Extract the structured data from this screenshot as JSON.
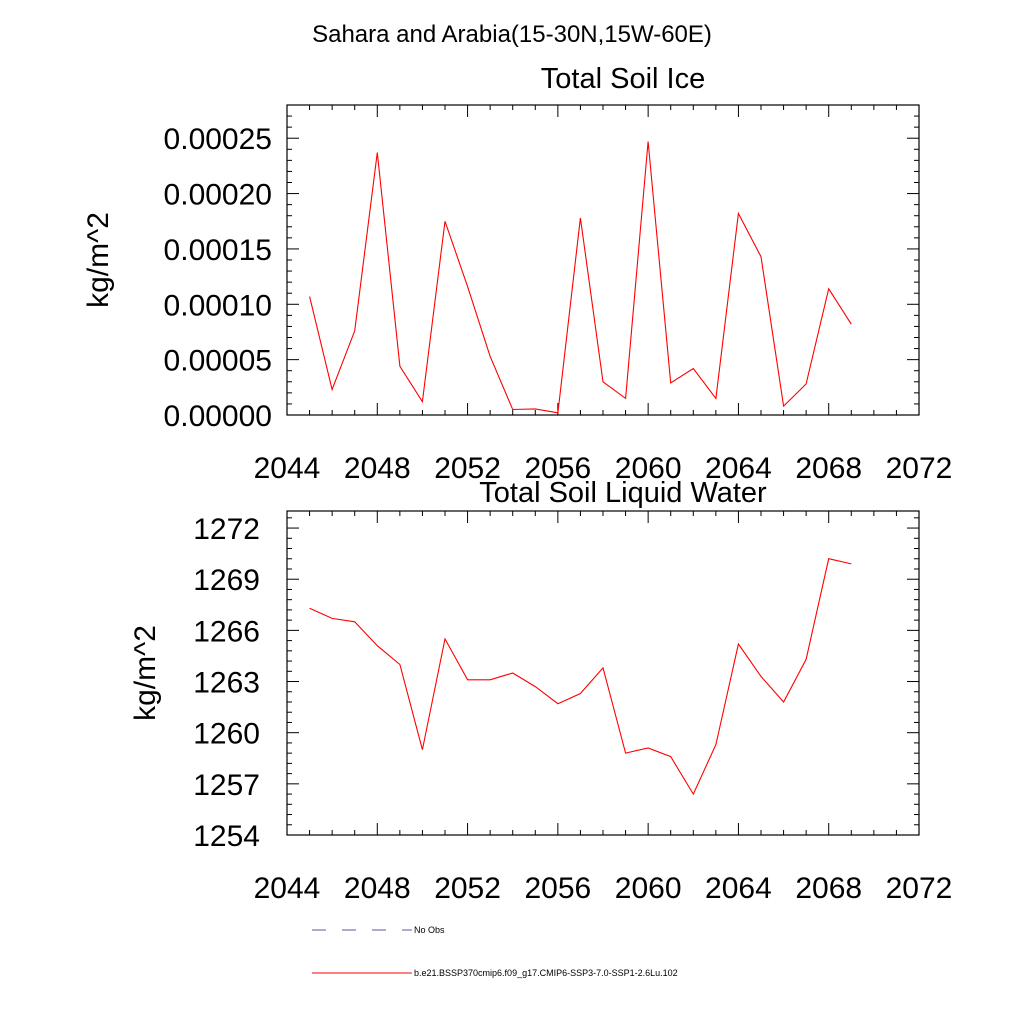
{
  "suptitle": "Sahara and Arabia(15-30N,15W-60E)",
  "legend": [
    {
      "label": "No Obs",
      "color": "#5a5aa0",
      "style": "dashed"
    },
    {
      "label": "b.e21.BSSP370cmip6.f09_g17.CMIP6-SSP3-7.0-SSP1-2.6Lu.102",
      "color": "#ff0000",
      "style": "solid"
    }
  ],
  "chart_data": [
    {
      "type": "line",
      "title": "Total Soil Ice",
      "xlabel": "",
      "ylabel": "kg/m^2",
      "xlim": [
        2044,
        2072
      ],
      "ylim": [
        0,
        0.00028
      ],
      "xticks": [
        2044,
        2048,
        2052,
        2056,
        2060,
        2064,
        2068,
        2072
      ],
      "xtick_labels": [
        "2044",
        "2048",
        "2052",
        "2056",
        "2060",
        "2064",
        "2068",
        "2072"
      ],
      "yticks": [
        0,
        5e-05,
        0.0001,
        0.00015,
        0.0002,
        0.00025
      ],
      "ytick_labels": [
        "0.00000",
        "0.00005",
        "0.00010",
        "0.00015",
        "0.00020",
        "0.00025"
      ],
      "grid": false,
      "series": [
        {
          "color": "#ff0000",
          "x": [
            2045,
            2046,
            2047,
            2048,
            2049,
            2050,
            2051,
            2052,
            2053,
            2054,
            2055,
            2056,
            2057,
            2058,
            2059,
            2060,
            2061,
            2062,
            2063,
            2064,
            2065,
            2066,
            2067,
            2068,
            2069
          ],
          "y": [
            0.000107,
            2.3e-05,
            7.6e-05,
            0.000237,
            4.4e-05,
            1.2e-05,
            0.000175,
            0.000116,
            5.3e-05,
            5e-06,
            5.5e-06,
            2e-06,
            0.000178,
            3e-05,
            1.5e-05,
            0.000247,
            2.9e-05,
            4.2e-05,
            1.5e-05,
            0.000182,
            0.000143,
            8e-06,
            2.8e-05,
            0.000114,
            8.2e-05
          ]
        }
      ]
    },
    {
      "type": "line",
      "title": "Total Soil Liquid Water",
      "xlabel": "",
      "ylabel": "kg/m^2",
      "xlim": [
        2044,
        2072
      ],
      "ylim": [
        1254,
        1273
      ],
      "xticks": [
        2044,
        2048,
        2052,
        2056,
        2060,
        2064,
        2068,
        2072
      ],
      "xtick_labels": [
        "2044",
        "2048",
        "2052",
        "2056",
        "2060",
        "2064",
        "2068",
        "2072"
      ],
      "yticks": [
        1254,
        1257,
        1260,
        1263,
        1266,
        1269,
        1272
      ],
      "ytick_labels": [
        "1254",
        "1257",
        "1260",
        "1263",
        "1266",
        "1269",
        "1272"
      ],
      "grid": false,
      "series": [
        {
          "color": "#ff0000",
          "x": [
            2045,
            2046,
            2047,
            2048,
            2049,
            2050,
            2051,
            2052,
            2053,
            2054,
            2055,
            2056,
            2057,
            2058,
            2059,
            2060,
            2061,
            2062,
            2063,
            2064,
            2065,
            2066,
            2067,
            2068,
            2069
          ],
          "y": [
            1267.3,
            1266.7,
            1266.5,
            1265.1,
            1264.0,
            1259.0,
            1265.5,
            1263.1,
            1263.1,
            1263.5,
            1262.7,
            1261.7,
            1262.3,
            1263.8,
            1258.8,
            1259.1,
            1258.6,
            1256.4,
            1259.3,
            1265.2,
            1263.3,
            1261.8,
            1264.3,
            1270.2,
            1269.9
          ]
        }
      ]
    }
  ]
}
